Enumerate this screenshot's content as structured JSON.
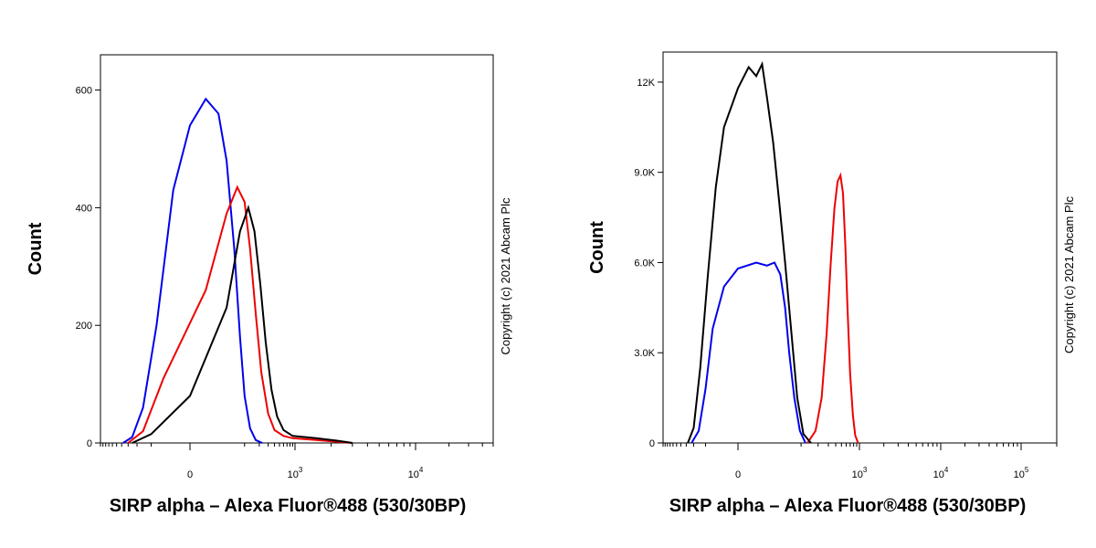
{
  "chart_data": [
    {
      "type": "line",
      "ylabel": "Count",
      "xlabel": "SIRP alpha – Alexa Fluor®488 (530/30BP)",
      "copyright": "Copyright (c) 2021 Abcam Plc",
      "xscale": "biexponential",
      "ylim": [
        0,
        660
      ],
      "yticks": [
        {
          "v": 0,
          "label": "0"
        },
        {
          "v": 200,
          "label": "200"
        },
        {
          "v": 400,
          "label": "400"
        },
        {
          "v": 600,
          "label": "600"
        }
      ],
      "xticks": [
        {
          "v": 0,
          "base": "0",
          "exp": ""
        },
        {
          "v": 1000,
          "base": "10",
          "exp": "3"
        },
        {
          "v": 10000,
          "base": "10",
          "exp": "4"
        }
      ],
      "xlim": [
        -400,
        50000
      ],
      "series": [
        {
          "color": "#0000ee",
          "x": [
            -150,
            -100,
            -60,
            -30,
            -10,
            0,
            10,
            25,
            40,
            60,
            80,
            100,
            130,
            170,
            230
          ],
          "y": [
            0,
            10,
            60,
            200,
            430,
            540,
            585,
            560,
            480,
            330,
            180,
            80,
            25,
            5,
            0
          ]
        },
        {
          "color": "#ee0000",
          "x": [
            -120,
            -60,
            -20,
            10,
            40,
            70,
            100,
            130,
            170,
            220,
            300,
            400,
            600,
            900,
            1500,
            3000
          ],
          "y": [
            0,
            20,
            110,
            260,
            390,
            435,
            410,
            330,
            220,
            120,
            50,
            22,
            12,
            8,
            5,
            0
          ]
        },
        {
          "color": "#000000",
          "x": [
            -100,
            -40,
            0,
            40,
            80,
            120,
            160,
            210,
            270,
            350,
            450,
            600,
            900,
            1500,
            2200,
            3000
          ],
          "y": [
            0,
            15,
            80,
            230,
            360,
            400,
            360,
            270,
            170,
            90,
            45,
            22,
            12,
            8,
            4,
            0
          ]
        }
      ]
    },
    {
      "type": "line",
      "ylabel": "Count",
      "xlabel": "SIRP alpha – Alexa Fluor®488 (530/30BP)",
      "copyright": "Copyright (c) 2021 Abcam Plc",
      "xscale": "biexponential",
      "ylim": [
        0,
        13000
      ],
      "yticks": [
        {
          "v": 0,
          "label": "0"
        },
        {
          "v": 3000,
          "label": "3.0K"
        },
        {
          "v": 6000,
          "label": "6.0K"
        },
        {
          "v": 9000,
          "label": "9.0K"
        },
        {
          "v": 12000,
          "label": "12K"
        }
      ],
      "xticks": [
        {
          "v": 0,
          "base": "0",
          "exp": ""
        },
        {
          "v": 1000,
          "base": "10",
          "exp": "3"
        },
        {
          "v": 10000,
          "base": "10",
          "exp": "4"
        },
        {
          "v": 100000,
          "base": "10",
          "exp": "5"
        }
      ],
      "xlim": [
        -400,
        200000
      ],
      "series": [
        {
          "color": "#0000ee",
          "x": [
            -90,
            -60,
            -40,
            -25,
            -10,
            0,
            10,
            20,
            30,
            40,
            50,
            60,
            75,
            95,
            120
          ],
          "y": [
            0,
            400,
            1800,
            3800,
            5200,
            5800,
            6000,
            5900,
            6000,
            5600,
            4500,
            3000,
            1500,
            400,
            0
          ]
        },
        {
          "color": "#ee0000",
          "x": [
            130,
            180,
            230,
            280,
            330,
            380,
            430,
            480,
            530,
            580,
            630,
            700,
            780,
            850,
            950
          ],
          "y": [
            0,
            400,
            1500,
            3600,
            6000,
            7800,
            8700,
            8900,
            8300,
            6600,
            4500,
            2300,
            900,
            250,
            0
          ]
        },
        {
          "color": "#000000",
          "x": [
            -110,
            -80,
            -55,
            -35,
            -20,
            -10,
            0,
            5,
            10,
            15,
            20,
            28,
            38,
            50,
            65,
            85,
            110,
            150
          ],
          "y": [
            0,
            500,
            2500,
            5500,
            8500,
            10500,
            11800,
            12500,
            12200,
            12600,
            11500,
            10000,
            8000,
            6000,
            3800,
            1500,
            300,
            0
          ]
        }
      ]
    }
  ]
}
